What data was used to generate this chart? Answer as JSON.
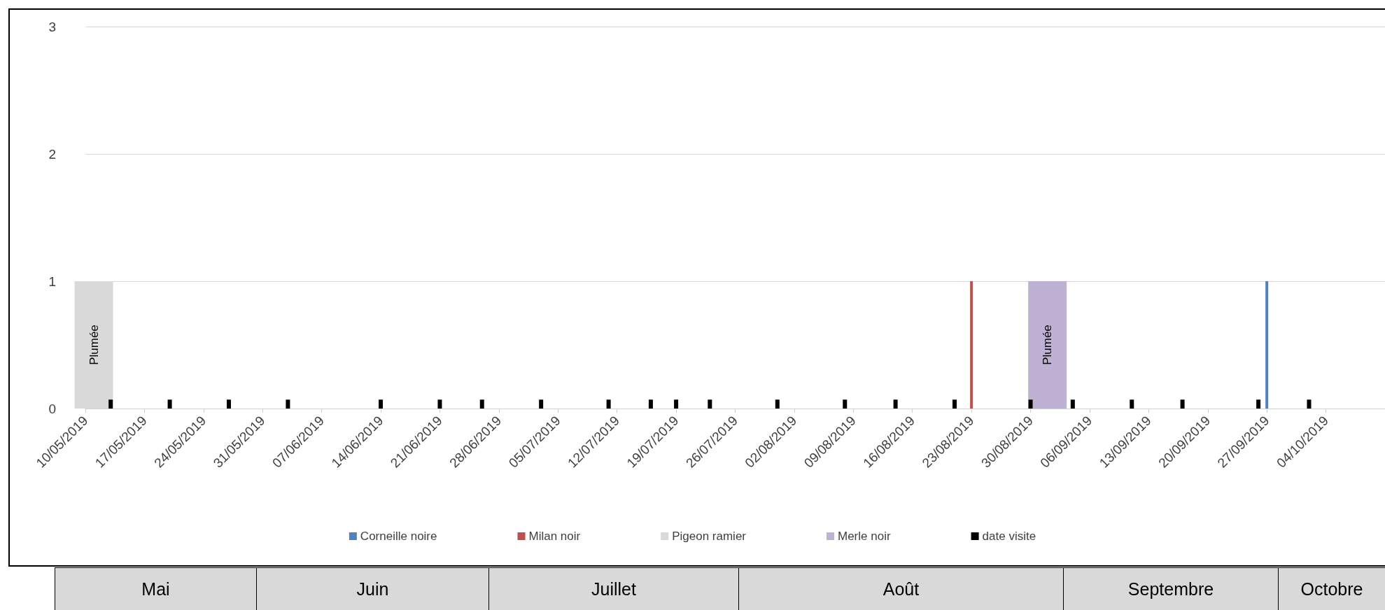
{
  "chart_data": {
    "type": "bar",
    "series": [
      {
        "name": "Corneille noire",
        "color": "#4f81bd",
        "x": [
          "2019-09-27"
        ],
        "values": [
          1
        ]
      },
      {
        "name": "Milan noir",
        "color": "#c0504d",
        "x": [
          "2019-08-23"
        ],
        "values": [
          1
        ]
      },
      {
        "name": "Pigeon ramier",
        "color": "#d9d9d9",
        "x": [
          "2019-05-11"
        ],
        "values": [
          1
        ],
        "value_labels": [
          "Plumée"
        ]
      },
      {
        "name": "Merle noir",
        "color": "#bfb1d4",
        "x": [
          "2019-09-01"
        ],
        "values": [
          1
        ],
        "value_labels": [
          "Plumée"
        ]
      },
      {
        "name": "date visite",
        "color": "#000000",
        "x": [
          "2019-05-13",
          "2019-05-20",
          "2019-05-27",
          "2019-06-03",
          "2019-06-14",
          "2019-06-21",
          "2019-06-26",
          "2019-07-03",
          "2019-07-11",
          "2019-07-16",
          "2019-07-19",
          "2019-07-23",
          "2019-07-31",
          "2019-08-08",
          "2019-08-14",
          "2019-08-21",
          "2019-08-30",
          "2019-09-04",
          "2019-09-11",
          "2019-09-17",
          "2019-09-26",
          "2019-10-02"
        ],
        "values": [
          0.07,
          0.07,
          0.07,
          0.07,
          0.07,
          0.07,
          0.07,
          0.07,
          0.07,
          0.07,
          0.07,
          0.07,
          0.07,
          0.07,
          0.07,
          0.07,
          0.07,
          0.07,
          0.07,
          0.07,
          0.07,
          0.07
        ]
      }
    ],
    "xlim": [
      "2019-05-10",
      "2019-10-11"
    ],
    "xticks": [
      {
        "value": "2019-05-10",
        "label": "10/05/2019"
      },
      {
        "value": "2019-05-17",
        "label": "17/05/2019"
      },
      {
        "value": "2019-05-24",
        "label": "24/05/2019"
      },
      {
        "value": "2019-05-31",
        "label": "31/05/2019"
      },
      {
        "value": "2019-06-07",
        "label": "07/06/2019"
      },
      {
        "value": "2019-06-14",
        "label": "14/06/2019"
      },
      {
        "value": "2019-06-21",
        "label": "21/06/2019"
      },
      {
        "value": "2019-06-28",
        "label": "28/06/2019"
      },
      {
        "value": "2019-07-05",
        "label": "05/07/2019"
      },
      {
        "value": "2019-07-12",
        "label": "12/07/2019"
      },
      {
        "value": "2019-07-19",
        "label": "19/07/2019"
      },
      {
        "value": "2019-07-26",
        "label": "26/07/2019"
      },
      {
        "value": "2019-08-02",
        "label": "02/08/2019"
      },
      {
        "value": "2019-08-09",
        "label": "09/08/2019"
      },
      {
        "value": "2019-08-16",
        "label": "16/08/2019"
      },
      {
        "value": "2019-08-23",
        "label": "23/08/2019"
      },
      {
        "value": "2019-08-30",
        "label": "30/08/2019"
      },
      {
        "value": "2019-09-06",
        "label": "06/09/2019"
      },
      {
        "value": "2019-09-13",
        "label": "13/09/2019"
      },
      {
        "value": "2019-09-20",
        "label": "20/09/2019"
      },
      {
        "value": "2019-09-27",
        "label": "27/09/2019"
      },
      {
        "value": "2019-10-04",
        "label": "04/10/2019"
      }
    ],
    "ylim": [
      0,
      3
    ],
    "yticks": [
      0,
      1,
      2,
      3
    ],
    "grid": "y",
    "legend": "bottom",
    "annotations": [
      "Mai",
      "Juin",
      "Juillet",
      "Août",
      "Septembre",
      "Octobre"
    ]
  }
}
